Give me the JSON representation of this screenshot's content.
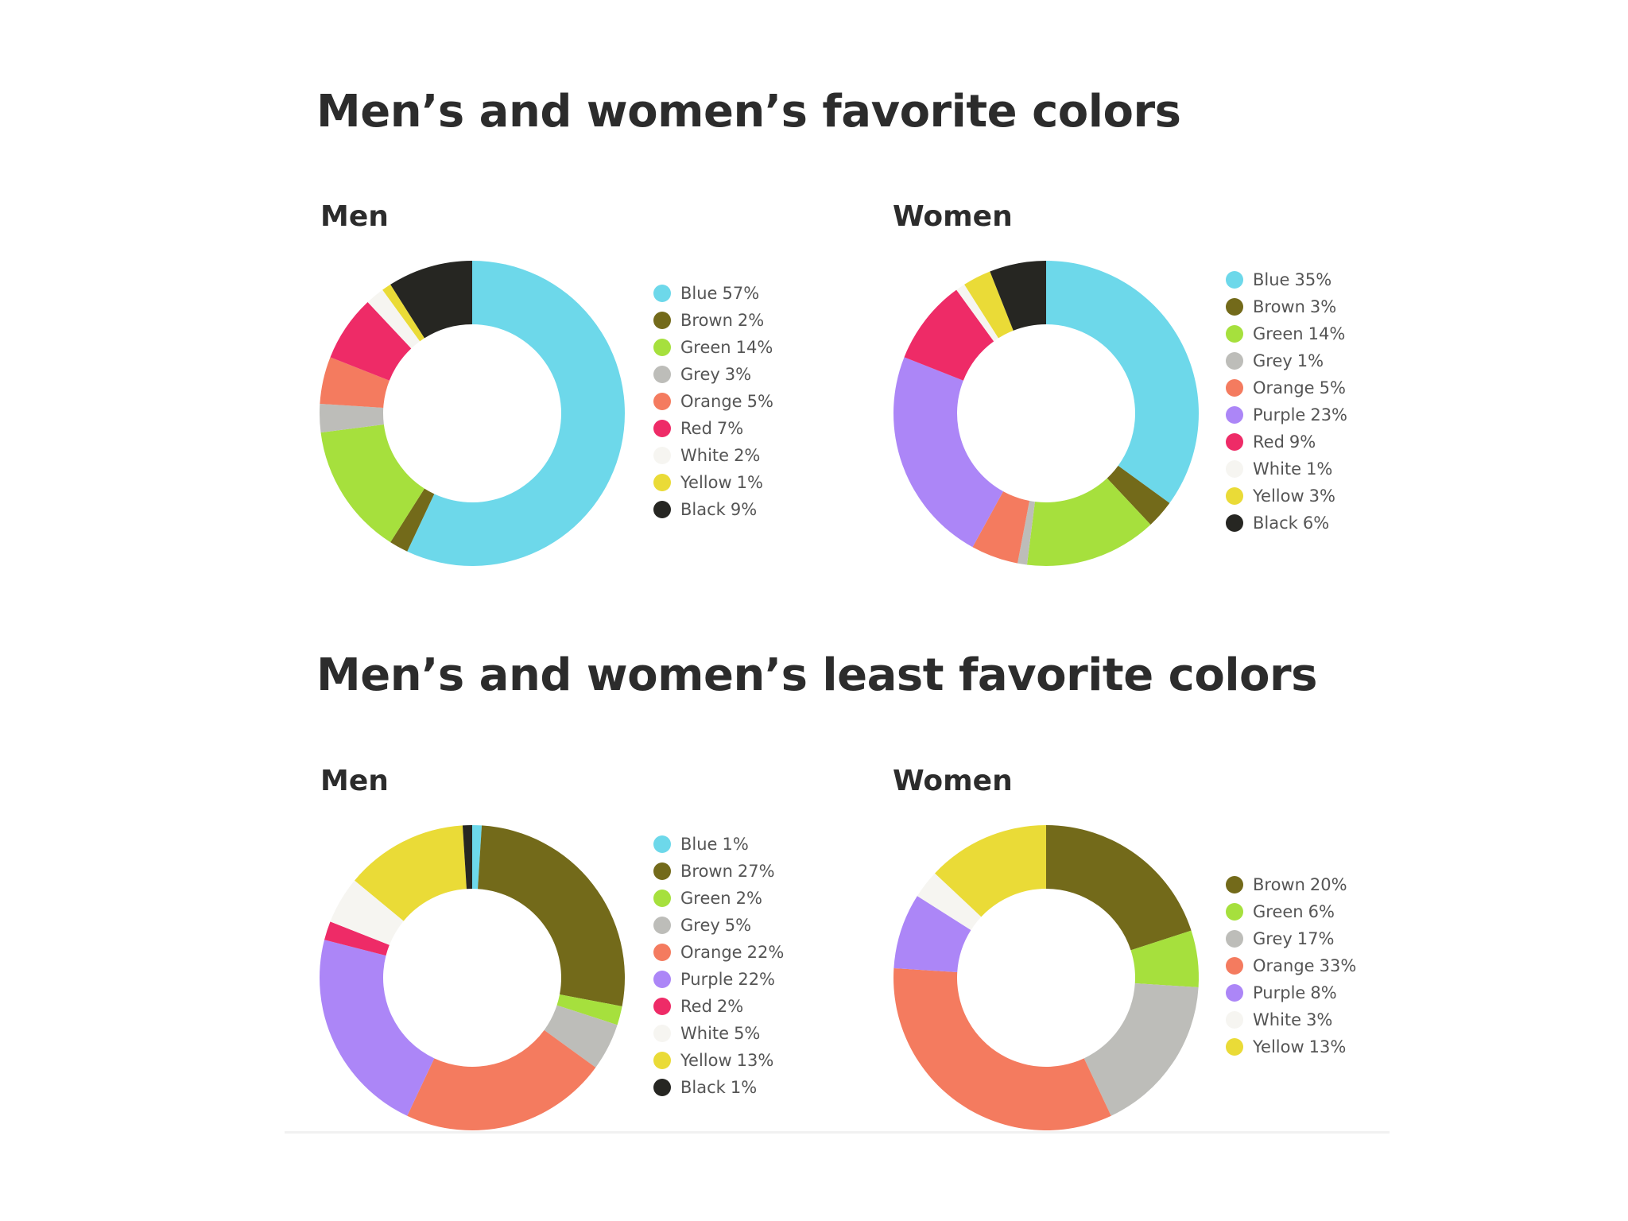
{
  "sections": [
    {
      "title": "Men’s and women’s favorite colors"
    },
    {
      "title": "Men’s and women’s least favorite colors"
    }
  ],
  "colors": {
    "Blue": "#6dd8ea",
    "Brown": "#736a1a",
    "Green": "#a6e03d",
    "Grey": "#bdbdb9",
    "Orange": "#f47b5f",
    "Purple": "#ac86f7",
    "Red": "#ee2b67",
    "White": "#f6f5f1",
    "Yellow": "#eadb37",
    "Black": "#262622"
  },
  "chart_data": [
    {
      "type": "pie",
      "title": "Men",
      "slices": [
        {
          "label": "Blue",
          "value": 57
        },
        {
          "label": "Brown",
          "value": 2
        },
        {
          "label": "Green",
          "value": 14
        },
        {
          "label": "Grey",
          "value": 3
        },
        {
          "label": "Orange",
          "value": 5
        },
        {
          "label": "Red",
          "value": 7
        },
        {
          "label": "White",
          "value": 2
        },
        {
          "label": "Yellow",
          "value": 1
        },
        {
          "label": "Black",
          "value": 9
        }
      ]
    },
    {
      "type": "pie",
      "title": "Women",
      "slices": [
        {
          "label": "Blue",
          "value": 35
        },
        {
          "label": "Brown",
          "value": 3
        },
        {
          "label": "Green",
          "value": 14
        },
        {
          "label": "Grey",
          "value": 1
        },
        {
          "label": "Orange",
          "value": 5
        },
        {
          "label": "Purple",
          "value": 23
        },
        {
          "label": "Red",
          "value": 9
        },
        {
          "label": "White",
          "value": 1
        },
        {
          "label": "Yellow",
          "value": 3
        },
        {
          "label": "Black",
          "value": 6
        }
      ]
    },
    {
      "type": "pie",
      "title": "Men",
      "slices": [
        {
          "label": "Blue",
          "value": 1
        },
        {
          "label": "Brown",
          "value": 27
        },
        {
          "label": "Green",
          "value": 2
        },
        {
          "label": "Grey",
          "value": 5
        },
        {
          "label": "Orange",
          "value": 22
        },
        {
          "label": "Purple",
          "value": 22
        },
        {
          "label": "Red",
          "value": 2
        },
        {
          "label": "White",
          "value": 5
        },
        {
          "label": "Yellow",
          "value": 13
        },
        {
          "label": "Black",
          "value": 1
        }
      ]
    },
    {
      "type": "pie",
      "title": "Women",
      "slices": [
        {
          "label": "Brown",
          "value": 20
        },
        {
          "label": "Green",
          "value": 6
        },
        {
          "label": "Grey",
          "value": 17
        },
        {
          "label": "Orange",
          "value": 33
        },
        {
          "label": "Purple",
          "value": 8
        },
        {
          "label": "White",
          "value": 3
        },
        {
          "label": "Yellow",
          "value": 13
        }
      ]
    }
  ]
}
